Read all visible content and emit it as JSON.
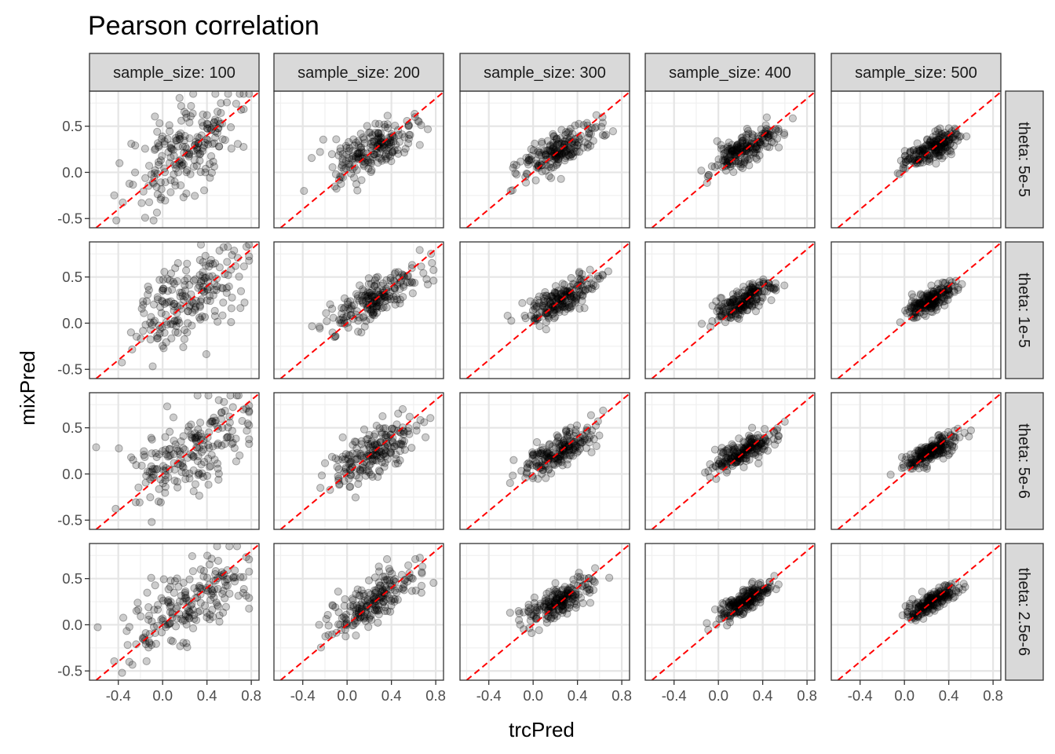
{
  "chart_data": {
    "type": "scatter",
    "title": "Pearson correlation",
    "xlabel": "trcPred",
    "ylabel": "mixPred",
    "facet_cols": [
      "sample_size: 100",
      "sample_size: 200",
      "sample_size: 300",
      "sample_size: 400",
      "sample_size: 500"
    ],
    "facet_rows": [
      "theta: 5e-5",
      "theta: 1e-5",
      "theta: 5e-6",
      "theta: 2.5e-6"
    ],
    "xlim": [
      -0.66,
      0.87
    ],
    "ylim": [
      -0.6,
      0.88
    ],
    "x_ticks": [
      -0.4,
      0.0,
      0.4,
      0.8
    ],
    "x_tick_labels": [
      "-0.4",
      "0.0",
      "0.4",
      "0.8"
    ],
    "y_ticks": [
      -0.5,
      0.0,
      0.5
    ],
    "y_tick_labels": [
      "-0.5",
      "0.0",
      "0.5"
    ],
    "grid": true,
    "reference_line": {
      "type": "identity",
      "slope": 1,
      "intercept": 0,
      "color": "#ff0000",
      "style": "dashed"
    },
    "point_color": "#000000",
    "point_alpha": 0.2,
    "points_per_panel": 200,
    "panel_spread": [
      [
        {
          "xsd": 0.26,
          "noise": 0.24
        },
        {
          "xsd": 0.2,
          "noise": 0.14
        },
        {
          "xsd": 0.18,
          "noise": 0.1
        },
        {
          "xsd": 0.15,
          "noise": 0.08
        },
        {
          "xsd": 0.13,
          "noise": 0.07
        }
      ],
      [
        {
          "xsd": 0.27,
          "noise": 0.22
        },
        {
          "xsd": 0.2,
          "noise": 0.12
        },
        {
          "xsd": 0.16,
          "noise": 0.09
        },
        {
          "xsd": 0.14,
          "noise": 0.07
        },
        {
          "xsd": 0.12,
          "noise": 0.06
        }
      ],
      [
        {
          "xsd": 0.28,
          "noise": 0.22
        },
        {
          "xsd": 0.2,
          "noise": 0.12
        },
        {
          "xsd": 0.16,
          "noise": 0.09
        },
        {
          "xsd": 0.13,
          "noise": 0.07
        },
        {
          "xsd": 0.12,
          "noise": 0.06
        }
      ],
      [
        {
          "xsd": 0.27,
          "noise": 0.22
        },
        {
          "xsd": 0.2,
          "noise": 0.11
        },
        {
          "xsd": 0.16,
          "noise": 0.08
        },
        {
          "xsd": 0.13,
          "noise": 0.06
        },
        {
          "xsd": 0.11,
          "noise": 0.05
        }
      ]
    ]
  }
}
